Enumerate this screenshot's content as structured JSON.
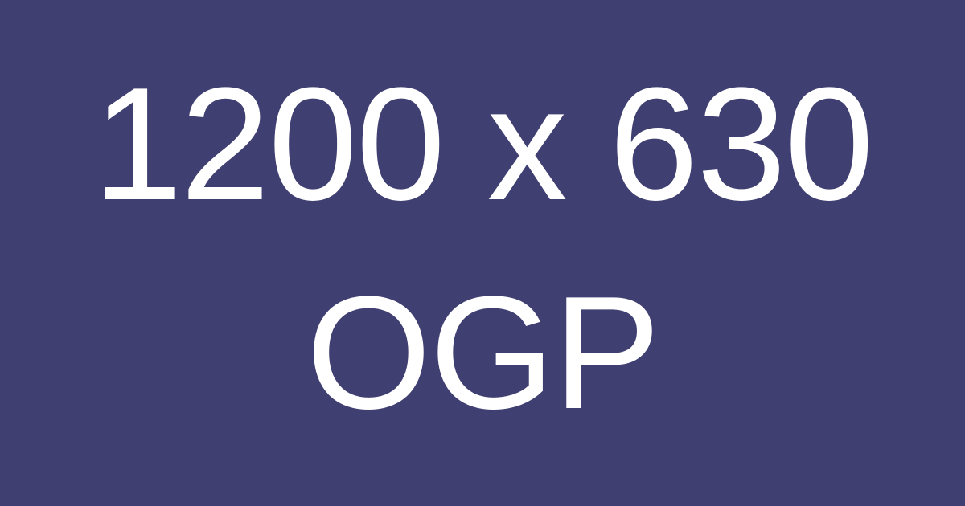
{
  "placeholder": {
    "dimensions_text": "1200 x 630",
    "label_text": "OGP"
  },
  "colors": {
    "background": "#403f71",
    "text": "#ffffff"
  }
}
